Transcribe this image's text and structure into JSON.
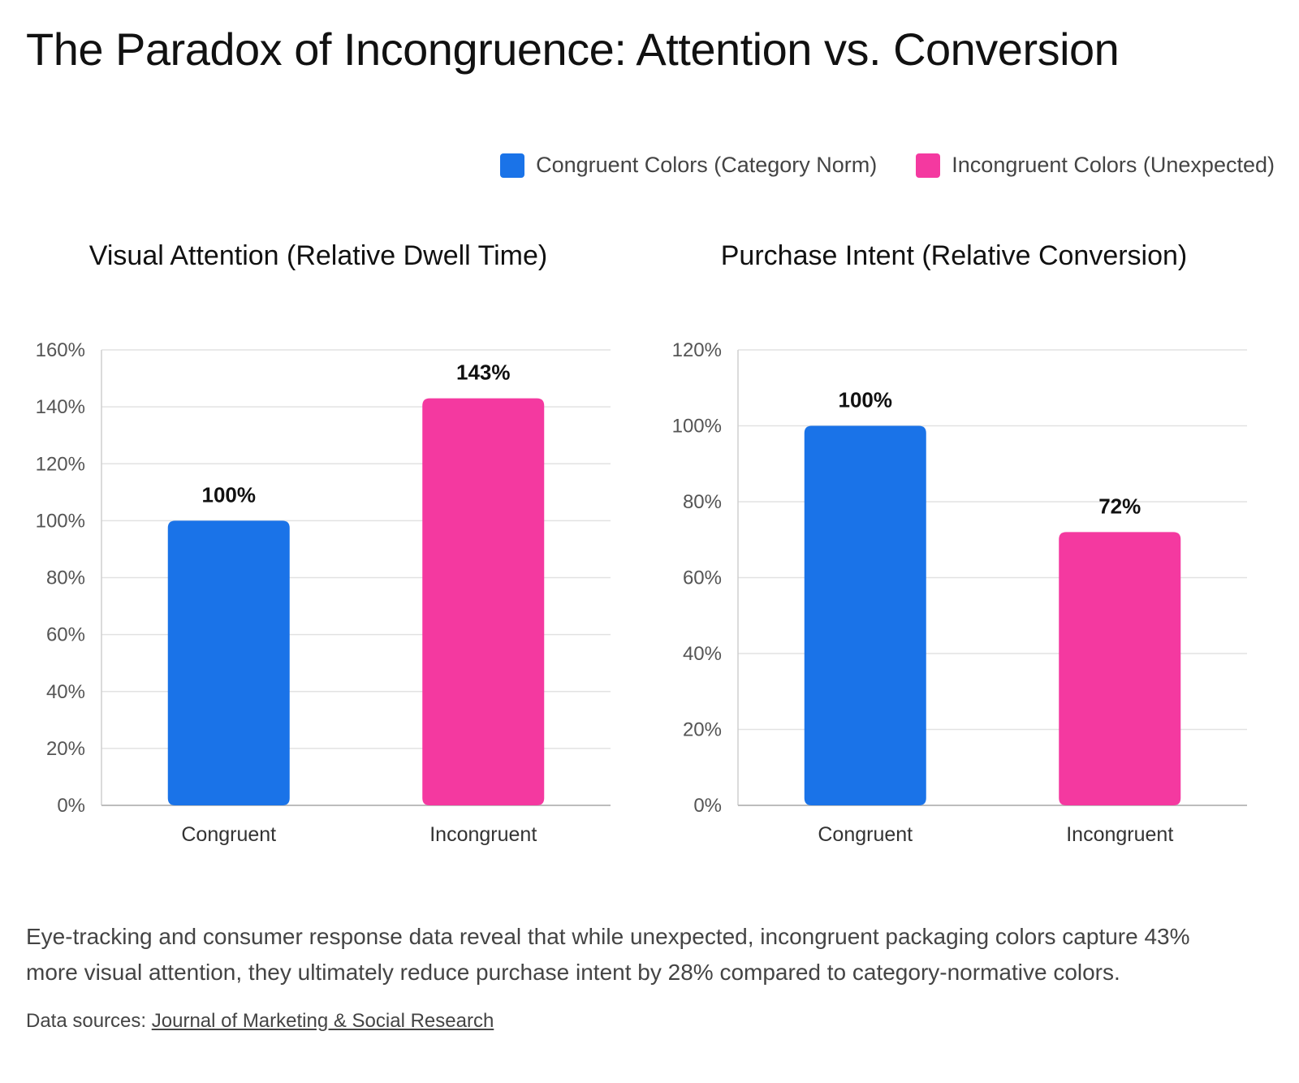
{
  "title": "The Paradox of Incongruence: Attention vs. Conversion",
  "legend": [
    {
      "label": "Congruent Colors (Category Norm)",
      "color": "#1a73e8"
    },
    {
      "label": "Incongruent Colors (Unexpected)",
      "color": "#f439a0"
    }
  ],
  "chart_data": [
    {
      "type": "bar",
      "title": "Visual Attention (Relative Dwell Time)",
      "categories": [
        "Congruent",
        "Incongruent"
      ],
      "values": [
        100,
        143
      ],
      "value_labels": [
        "100%",
        "143%"
      ],
      "colors": [
        "#1a73e8",
        "#f439a0"
      ],
      "ylim": [
        0,
        160
      ],
      "yticks": [
        "0%",
        "20%",
        "40%",
        "60%",
        "80%",
        "100%",
        "120%",
        "140%",
        "160%"
      ],
      "grid": true
    },
    {
      "type": "bar",
      "title": "Purchase Intent (Relative Conversion)",
      "categories": [
        "Congruent",
        "Incongruent"
      ],
      "values": [
        100,
        72
      ],
      "value_labels": [
        "100%",
        "72%"
      ],
      "colors": [
        "#1a73e8",
        "#f439a0"
      ],
      "ylim": [
        0,
        120
      ],
      "yticks": [
        "0%",
        "20%",
        "40%",
        "60%",
        "80%",
        "100%",
        "120%"
      ],
      "grid": true
    }
  ],
  "description": "Eye-tracking and consumer response data reveal that while unexpected, incongruent packaging colors capture 43% more visual attention, they ultimately reduce purchase intent by 28% compared to category-normative colors.",
  "sources": {
    "prefix": "Data sources:",
    "link": "Journal of Marketing & Social Research"
  }
}
